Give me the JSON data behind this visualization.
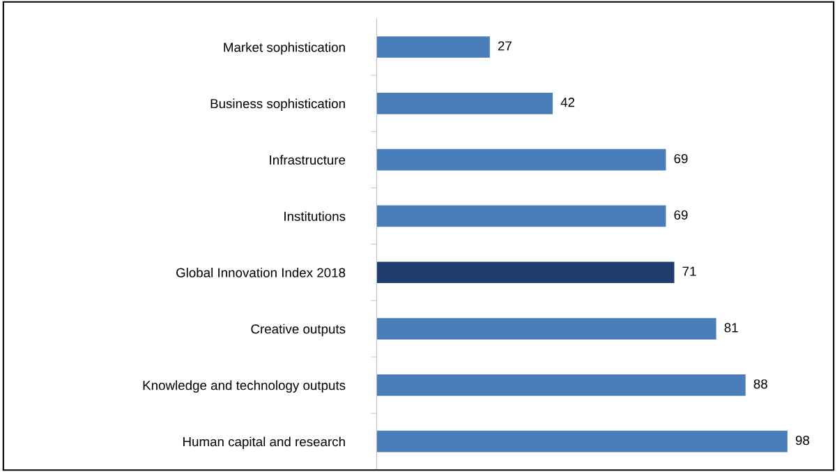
{
  "chart_data": {
    "type": "bar",
    "orientation": "horizontal",
    "data_labels": true,
    "grid": false,
    "legend": false,
    "tick_labels": "y",
    "categories": [
      "Market sophistication",
      "Business sophistication",
      "Infrastructure",
      "Institutions",
      "Global Innovation Index 2018",
      "Creative outputs",
      "Knowledge and technology outputs",
      "Human capital and research"
    ],
    "values": [
      27,
      42,
      69,
      69,
      71,
      81,
      88,
      98
    ],
    "colors": [
      "#4a7ebb",
      "#4a7ebb",
      "#4a7ebb",
      "#4a7ebb",
      "#1f3d6e",
      "#4a7ebb",
      "#4a7ebb",
      "#4a7ebb"
    ]
  }
}
